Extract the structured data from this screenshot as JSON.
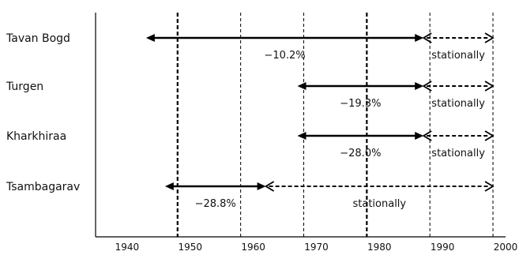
{
  "chart_data": {
    "type": "interval-timeline",
    "x_axis": {
      "range": [
        1935,
        2000
      ],
      "ticks": [
        1940,
        1950,
        1960,
        1970,
        1980,
        1990,
        2000
      ]
    },
    "gridlines": [
      {
        "x": 1948,
        "style": "bold-dashed"
      },
      {
        "x": 1958,
        "style": "dashed"
      },
      {
        "x": 1968,
        "style": "dashed"
      },
      {
        "x": 1978,
        "style": "bold-dashed"
      },
      {
        "x": 1988,
        "style": "dashed"
      },
      {
        "x": 1998,
        "style": "dashed"
      }
    ],
    "rows": [
      {
        "name": "Tavan Bogd",
        "segments": [
          {
            "from": 1943,
            "to": 1987,
            "style": "solid",
            "label": "−10.2%"
          },
          {
            "from": 1987,
            "to": 1998,
            "style": "dashed",
            "label": "stationally"
          }
        ]
      },
      {
        "name": "Turgen",
        "segments": [
          {
            "from": 1967,
            "to": 1987,
            "style": "solid",
            "label": "−19.3%"
          },
          {
            "from": 1987,
            "to": 1998,
            "style": "dashed",
            "label": "stationally"
          }
        ]
      },
      {
        "name": "Kharkhiraa",
        "segments": [
          {
            "from": 1967,
            "to": 1987,
            "style": "solid",
            "label": "−28.0%"
          },
          {
            "from": 1987,
            "to": 1998,
            "style": "dashed",
            "label": "stationally"
          }
        ]
      },
      {
        "name": "Tsambagarav",
        "segments": [
          {
            "from": 1946,
            "to": 1962,
            "style": "solid",
            "label": "−28.8%"
          },
          {
            "from": 1962,
            "to": 1998,
            "style": "dashed",
            "label": "stationally"
          }
        ]
      }
    ]
  }
}
